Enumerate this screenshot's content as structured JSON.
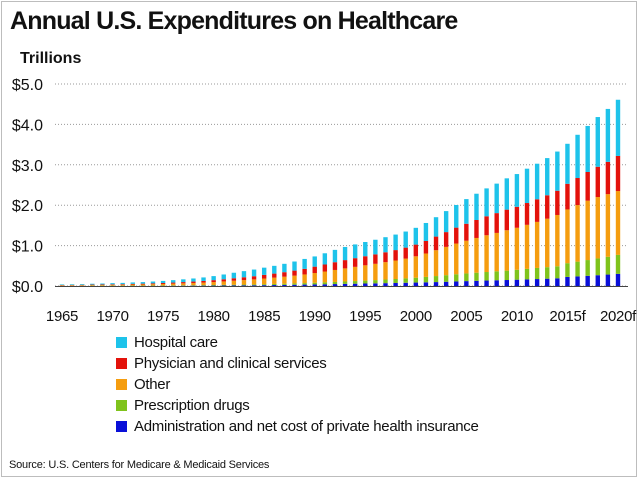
{
  "title": "Annual U.S. Expenditures on Healthcare",
  "units_label": "Trillions",
  "source": "Source: U.S. Centers for Medicare & Medicaid Services",
  "chart_data": {
    "type": "bar",
    "stacked": true,
    "ylim": [
      0,
      5
    ],
    "yticks": [
      "$0.0",
      "$1.0",
      "$2.0",
      "$3.0",
      "$4.0",
      "$5.0"
    ],
    "xtick_labels": [
      "1965",
      "1970",
      "1975",
      "1980",
      "1985",
      "1990",
      "1995",
      "2000",
      "2005",
      "2010",
      "2015f",
      "2020f"
    ],
    "grid": "horizontal dotted",
    "categories": [
      "1965",
      "1966",
      "1967",
      "1968",
      "1969",
      "1970",
      "1971",
      "1972",
      "1973",
      "1974",
      "1975",
      "1976",
      "1977",
      "1978",
      "1979",
      "1980",
      "1981",
      "1982",
      "1983",
      "1984",
      "1985",
      "1986",
      "1987",
      "1988",
      "1989",
      "1990",
      "1991",
      "1992",
      "1993",
      "1994",
      "1995",
      "1996",
      "1997",
      "1998",
      "1999",
      "2000",
      "2001",
      "2002",
      "2003",
      "2004",
      "2005",
      "2006",
      "2007",
      "2008",
      "2009",
      "2010",
      "2011",
      "2012",
      "2013",
      "2014",
      "2015",
      "2016",
      "2017",
      "2018",
      "2019",
      "2020"
    ],
    "series": [
      {
        "name": "Administration and net cost of private health insurance",
        "color": "#0a10d8",
        "values": [
          0.002,
          0.002,
          0.002,
          0.003,
          0.003,
          0.003,
          0.003,
          0.004,
          0.004,
          0.005,
          0.005,
          0.006,
          0.007,
          0.008,
          0.009,
          0.01,
          0.012,
          0.014,
          0.016,
          0.018,
          0.021,
          0.024,
          0.027,
          0.031,
          0.035,
          0.039,
          0.043,
          0.048,
          0.053,
          0.057,
          0.062,
          0.066,
          0.071,
          0.075,
          0.08,
          0.085,
          0.091,
          0.097,
          0.105,
          0.113,
          0.121,
          0.128,
          0.135,
          0.142,
          0.148,
          0.156,
          0.164,
          0.172,
          0.181,
          0.19,
          0.225,
          0.238,
          0.252,
          0.267,
          0.283,
          0.3
        ]
      },
      {
        "name": "Prescription drugs",
        "color": "#7fc31c",
        "values": [
          0.004,
          0.004,
          0.004,
          0.005,
          0.005,
          0.006,
          0.006,
          0.007,
          0.007,
          0.008,
          0.009,
          0.01,
          0.011,
          0.012,
          0.013,
          0.015,
          0.016,
          0.018,
          0.02,
          0.022,
          0.024,
          0.027,
          0.03,
          0.033,
          0.037,
          0.042,
          0.047,
          0.052,
          0.058,
          0.065,
          0.072,
          0.08,
          0.089,
          0.098,
          0.108,
          0.12,
          0.134,
          0.149,
          0.163,
          0.178,
          0.19,
          0.201,
          0.211,
          0.222,
          0.232,
          0.245,
          0.26,
          0.275,
          0.285,
          0.298,
          0.34,
          0.365,
          0.39,
          0.415,
          0.44,
          0.47
        ]
      },
      {
        "name": "Other",
        "color": "#f59d0f",
        "values": [
          0.012,
          0.013,
          0.014,
          0.016,
          0.018,
          0.02,
          0.022,
          0.025,
          0.028,
          0.032,
          0.036,
          0.042,
          0.048,
          0.055,
          0.063,
          0.073,
          0.085,
          0.098,
          0.11,
          0.124,
          0.14,
          0.156,
          0.173,
          0.192,
          0.214,
          0.24,
          0.268,
          0.297,
          0.325,
          0.352,
          0.378,
          0.403,
          0.43,
          0.458,
          0.49,
          0.53,
          0.58,
          0.64,
          0.7,
          0.76,
          0.81,
          0.86,
          0.91,
          0.95,
          1.0,
          1.04,
          1.09,
          1.14,
          1.2,
          1.27,
          1.33,
          1.4,
          1.47,
          1.52,
          1.55,
          1.58
        ]
      },
      {
        "name": "Physician and clinical services",
        "color": "#e3120b",
        "values": [
          0.008,
          0.009,
          0.01,
          0.011,
          0.012,
          0.014,
          0.015,
          0.017,
          0.019,
          0.021,
          0.024,
          0.027,
          0.031,
          0.035,
          0.04,
          0.047,
          0.054,
          0.062,
          0.07,
          0.078,
          0.09,
          0.1,
          0.112,
          0.125,
          0.138,
          0.158,
          0.174,
          0.192,
          0.205,
          0.215,
          0.225,
          0.234,
          0.245,
          0.258,
          0.272,
          0.29,
          0.31,
          0.337,
          0.366,
          0.394,
          0.42,
          0.445,
          0.47,
          0.49,
          0.51,
          0.52,
          0.54,
          0.56,
          0.58,
          0.6,
          0.635,
          0.67,
          0.71,
          0.75,
          0.8,
          0.87
        ]
      },
      {
        "name": "Hospital care",
        "color": "#1ec3ea",
        "values": [
          0.014,
          0.016,
          0.018,
          0.021,
          0.024,
          0.028,
          0.031,
          0.035,
          0.039,
          0.045,
          0.052,
          0.06,
          0.068,
          0.076,
          0.087,
          0.1,
          0.118,
          0.136,
          0.152,
          0.165,
          0.179,
          0.192,
          0.207,
          0.225,
          0.246,
          0.253,
          0.278,
          0.305,
          0.325,
          0.34,
          0.352,
          0.362,
          0.373,
          0.384,
          0.398,
          0.415,
          0.445,
          0.48,
          0.52,
          0.56,
          0.61,
          0.65,
          0.69,
          0.73,
          0.775,
          0.81,
          0.85,
          0.88,
          0.92,
          0.97,
          0.99,
          1.07,
          1.14,
          1.23,
          1.31,
          1.39
        ]
      }
    ]
  }
}
